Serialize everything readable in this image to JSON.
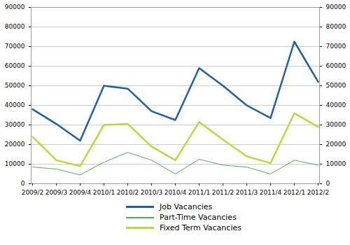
{
  "chart_data": {
    "type": "line",
    "categories": [
      "2009/2",
      "2009/3",
      "2009/4",
      "2010/1",
      "2010/2",
      "2010/3",
      "2010/4",
      "2011/1",
      "2011/2",
      "2011/3",
      "2011/4",
      "2012/1",
      "2012/2"
    ],
    "series": [
      {
        "name": "Job Vacancies",
        "color": "#1f5fa6",
        "values": [
          38000,
          30500,
          22000,
          50000,
          48500,
          37000,
          32500,
          59000,
          50000,
          40000,
          33500,
          72500,
          52000
        ]
      },
      {
        "name": "Part-Time Vacancies",
        "color": "#4caf50",
        "values": [
          8500,
          7500,
          4500,
          11000,
          16000,
          12000,
          5000,
          12500,
          9500,
          8500,
          5000,
          12000,
          9500
        ]
      },
      {
        "name": "Fixed Term Vacancies",
        "color": "#b5dc3c",
        "values": [
          24000,
          12000,
          9000,
          30000,
          30500,
          19000,
          12000,
          31500,
          22500,
          14000,
          10500,
          36000,
          29000
        ]
      }
    ],
    "ylim": [
      0,
      90000
    ],
    "yticks": [
      0,
      10000,
      20000,
      30000,
      40000,
      50000,
      60000,
      70000,
      80000,
      90000
    ],
    "grid": true,
    "legend": "bottom"
  }
}
